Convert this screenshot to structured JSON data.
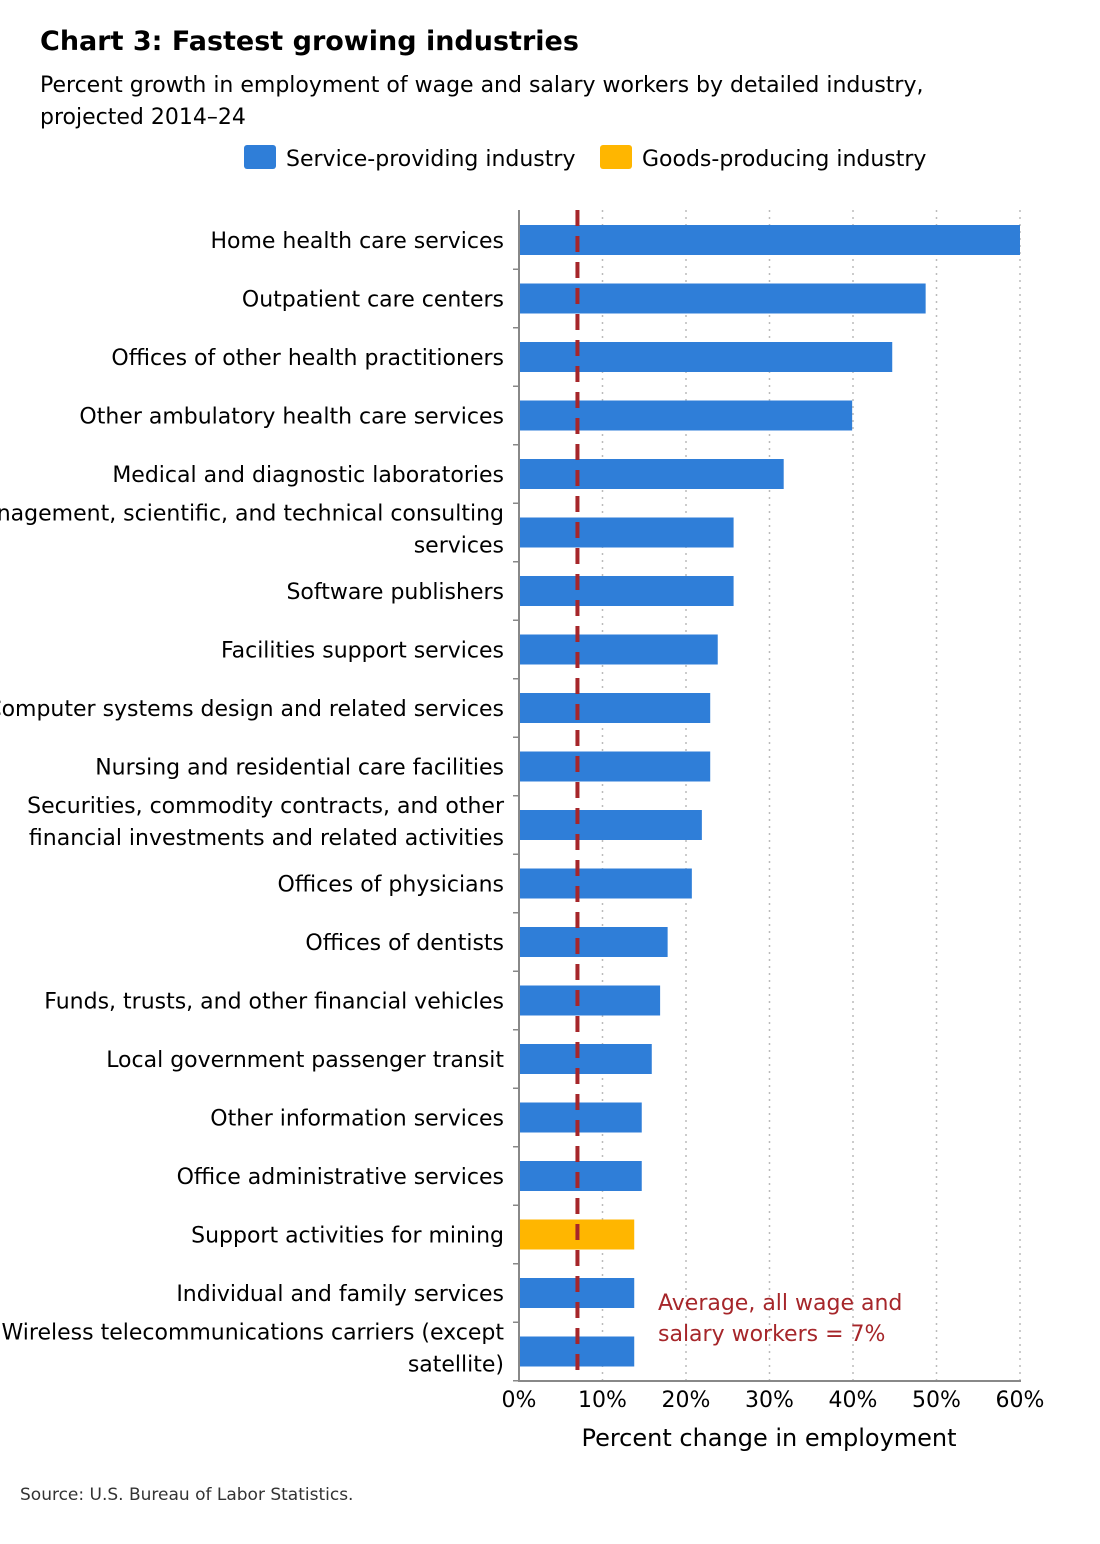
{
  "chart_data": {
    "type": "bar",
    "orientation": "horizontal",
    "title": "Chart 3: Fastest growing industries",
    "subtitle_lines": [
      "Percent growth in employment of wage and salary workers by detailed industry,",
      "projected 2014–24"
    ],
    "xlabel": "Percent change in employment",
    "ylabel": "",
    "xlim": [
      0,
      60
    ],
    "x_ticks": [
      "0%",
      "10%",
      "20%",
      "30%",
      "40%",
      "50%",
      "60%"
    ],
    "grid": "vertical dotted",
    "legend_placement": "top",
    "legend": [
      {
        "name": "Service-providing industry",
        "color": "#2f7ed8"
      },
      {
        "name": "Goods-producing industry",
        "color": "#ffb600"
      }
    ],
    "categories": [
      [
        "Home health care services"
      ],
      [
        "Outpatient care centers"
      ],
      [
        "Offices of other health practitioners"
      ],
      [
        "Other ambulatory health care services"
      ],
      [
        "Medical and diagnostic laboratories"
      ],
      [
        "Management, scientific, and technical consulting",
        "services"
      ],
      [
        "Software publishers"
      ],
      [
        "Facilities support services"
      ],
      [
        "Computer systems design and related services"
      ],
      [
        "Nursing and residential care facilities"
      ],
      [
        "Securities, commodity contracts, and other",
        "financial investments and related activities"
      ],
      [
        "Offices of physicians"
      ],
      [
        "Offices of dentists"
      ],
      [
        "Funds, trusts, and other financial vehicles"
      ],
      [
        "Local government passenger transit"
      ],
      [
        "Other information services"
      ],
      [
        "Office administrative services"
      ],
      [
        "Support activities for mining"
      ],
      [
        "Individual and family services"
      ],
      [
        "Wireless telecommunications carriers (except",
        "satellite)"
      ]
    ],
    "values": [
      60.0,
      48.7,
      44.7,
      39.9,
      31.7,
      25.7,
      25.7,
      23.8,
      22.9,
      22.9,
      21.9,
      20.7,
      17.8,
      16.9,
      15.9,
      14.7,
      14.7,
      13.8,
      13.8,
      13.8
    ],
    "groups": [
      "service",
      "service",
      "service",
      "service",
      "service",
      "service",
      "service",
      "service",
      "service",
      "service",
      "service",
      "service",
      "service",
      "service",
      "service",
      "service",
      "service",
      "goods",
      "service",
      "service"
    ],
    "reference_line": {
      "value": 7,
      "color": "#a6262a",
      "label_lines": [
        "Average, all wage and",
        "salary workers = 7%"
      ]
    },
    "source": "Source: U.S. Bureau of Labor Statistics."
  }
}
